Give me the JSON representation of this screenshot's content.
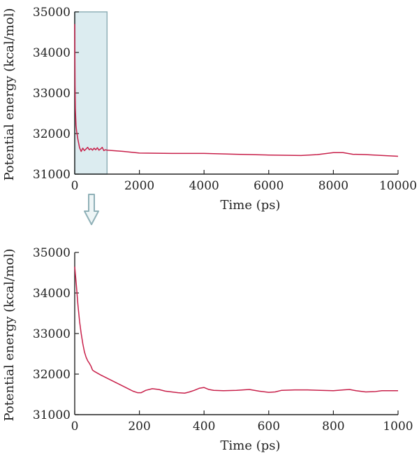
{
  "chart_data": [
    {
      "type": "line",
      "xlabel": "Time (ps)",
      "ylabel": "Potential energy (kcal/mol)",
      "xlim": [
        0,
        10000
      ],
      "ylim": [
        31000,
        35000
      ],
      "xticks": [
        "0",
        "2000",
        "4000",
        "6000",
        "8000",
        "10000"
      ],
      "yticks": [
        "31000",
        "32000",
        "33000",
        "34000",
        "35000"
      ],
      "highlight_region": {
        "x": [
          0,
          1000
        ],
        "y": [
          31000,
          35000
        ],
        "color": "#dcecf0"
      },
      "line_color": "#c8204a",
      "series": [
        {
          "x": [
            0,
            10,
            20,
            40,
            60,
            100,
            150,
            200,
            250,
            300,
            350,
            400,
            450,
            500,
            550,
            600,
            650,
            700,
            750,
            800,
            850,
            900,
            950,
            1000,
            1500,
            2000,
            3000,
            4000,
            5000,
            6000,
            7000,
            7500,
            8000,
            8300,
            8600,
            9000,
            10000
          ],
          "y": [
            34700,
            33200,
            32600,
            32200,
            32050,
            31850,
            31650,
            31560,
            31640,
            31580,
            31620,
            31660,
            31600,
            31630,
            31590,
            31640,
            31600,
            31650,
            31590,
            31620,
            31660,
            31580,
            31600,
            31590,
            31560,
            31520,
            31510,
            31510,
            31490,
            31470,
            31460,
            31480,
            31530,
            31530,
            31490,
            31480,
            31440
          ]
        }
      ]
    },
    {
      "type": "line",
      "xlabel": "Time (ps)",
      "ylabel": "Potential energy (kcal/mol)",
      "xlim": [
        0,
        1000
      ],
      "ylim": [
        31000,
        35000
      ],
      "xticks": [
        "0",
        "200",
        "400",
        "600",
        "800",
        "1000"
      ],
      "yticks": [
        "31000",
        "32000",
        "33000",
        "34000",
        "35000"
      ],
      "line_color": "#c8204a",
      "series": [
        {
          "x": [
            0,
            5,
            10,
            15,
            20,
            25,
            30,
            35,
            40,
            45,
            50,
            55,
            60,
            80,
            100,
            120,
            140,
            160,
            180,
            195,
            205,
            220,
            240,
            260,
            280,
            300,
            320,
            340,
            355,
            370,
            385,
            400,
            415,
            430,
            460,
            500,
            540,
            570,
            600,
            620,
            640,
            680,
            720,
            760,
            800,
            830,
            850,
            870,
            900,
            930,
            950,
            1000
          ],
          "y": [
            34650,
            34200,
            33700,
            33300,
            33000,
            32750,
            32550,
            32420,
            32330,
            32270,
            32200,
            32100,
            32070,
            31980,
            31900,
            31820,
            31740,
            31660,
            31580,
            31540,
            31540,
            31600,
            31640,
            31620,
            31580,
            31560,
            31540,
            31530,
            31560,
            31600,
            31650,
            31670,
            31620,
            31600,
            31590,
            31600,
            31620,
            31580,
            31550,
            31560,
            31600,
            31610,
            31610,
            31600,
            31590,
            31610,
            31620,
            31590,
            31560,
            31570,
            31590,
            31590
          ]
        }
      ]
    }
  ],
  "arrow": {
    "icon": "down-arrow-icon",
    "color": "#8fb0b7"
  }
}
